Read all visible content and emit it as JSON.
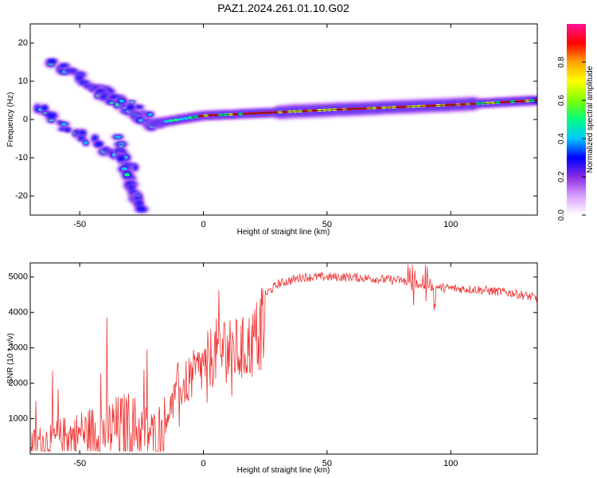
{
  "title": "PAZ1.2024.261.01.10.G02",
  "chart_data": [
    {
      "type": "heatmap",
      "xlabel": "Height of straight line (km)",
      "ylabel": "Frequency (Hz)",
      "xlim": [
        -70,
        135
      ],
      "ylim": [
        -25,
        25
      ],
      "xticks": [
        "-50",
        "0",
        "50",
        "100"
      ],
      "yticks": [
        "20",
        "10",
        "0",
        "-10",
        "-20"
      ],
      "colorbar": {
        "label": "Normalized spectral amplitude",
        "range": [
          0,
          1
        ],
        "ticks": [
          "0.0",
          "0.2",
          "0.4",
          "0.6",
          "0.8"
        ],
        "colors": [
          "#ffffff",
          "#d9a0ff",
          "#8a2be2",
          "#0000ff",
          "#00c8ff",
          "#00ff7f",
          "#7fff00",
          "#ffff00",
          "#ffa500",
          "#ff0000",
          "#ff1493"
        ]
      },
      "ridge": [
        [
          -20,
          -1
        ],
        [
          0,
          1
        ],
        [
          50,
          2.5
        ],
        [
          100,
          3.8
        ],
        [
          135,
          5
        ]
      ],
      "branches": [
        {
          "from": [
            -62,
            15
          ],
          "to": [
            -20,
            0
          ]
        },
        {
          "from": [
            -45,
            8
          ],
          "to": [
            -18,
            -2
          ]
        },
        {
          "from": [
            -68,
            3
          ],
          "to": [
            -28,
            -12
          ]
        },
        {
          "from": [
            -35,
            -5
          ],
          "to": [
            -26,
            -24
          ]
        }
      ]
    },
    {
      "type": "line",
      "xlabel": "Height of straight line (km)",
      "ylabel": "SNR (10 * v/v)",
      "xlim": [
        -70,
        135
      ],
      "ylim": [
        0,
        5400
      ],
      "xticks": [
        "-50",
        "0",
        "50",
        "100"
      ],
      "yticks": [
        "5000",
        "4000",
        "3000",
        "2000",
        "1000"
      ],
      "color": "#ee3333",
      "envelope": [
        [
          -70,
          500
        ],
        [
          -55,
          800
        ],
        [
          -40,
          1100
        ],
        [
          -30,
          1300
        ],
        [
          -20,
          900
        ],
        [
          -15,
          1300
        ],
        [
          -10,
          2200
        ],
        [
          -5,
          2600
        ],
        [
          0,
          3000
        ],
        [
          5,
          3500
        ],
        [
          10,
          3600
        ],
        [
          15,
          3500
        ],
        [
          20,
          3800
        ],
        [
          25,
          4500
        ],
        [
          30,
          4800
        ],
        [
          40,
          5000
        ],
        [
          60,
          5000
        ],
        [
          80,
          4900
        ],
        [
          95,
          4700
        ],
        [
          110,
          4650
        ],
        [
          125,
          4550
        ],
        [
          135,
          4400
        ]
      ]
    }
  ]
}
